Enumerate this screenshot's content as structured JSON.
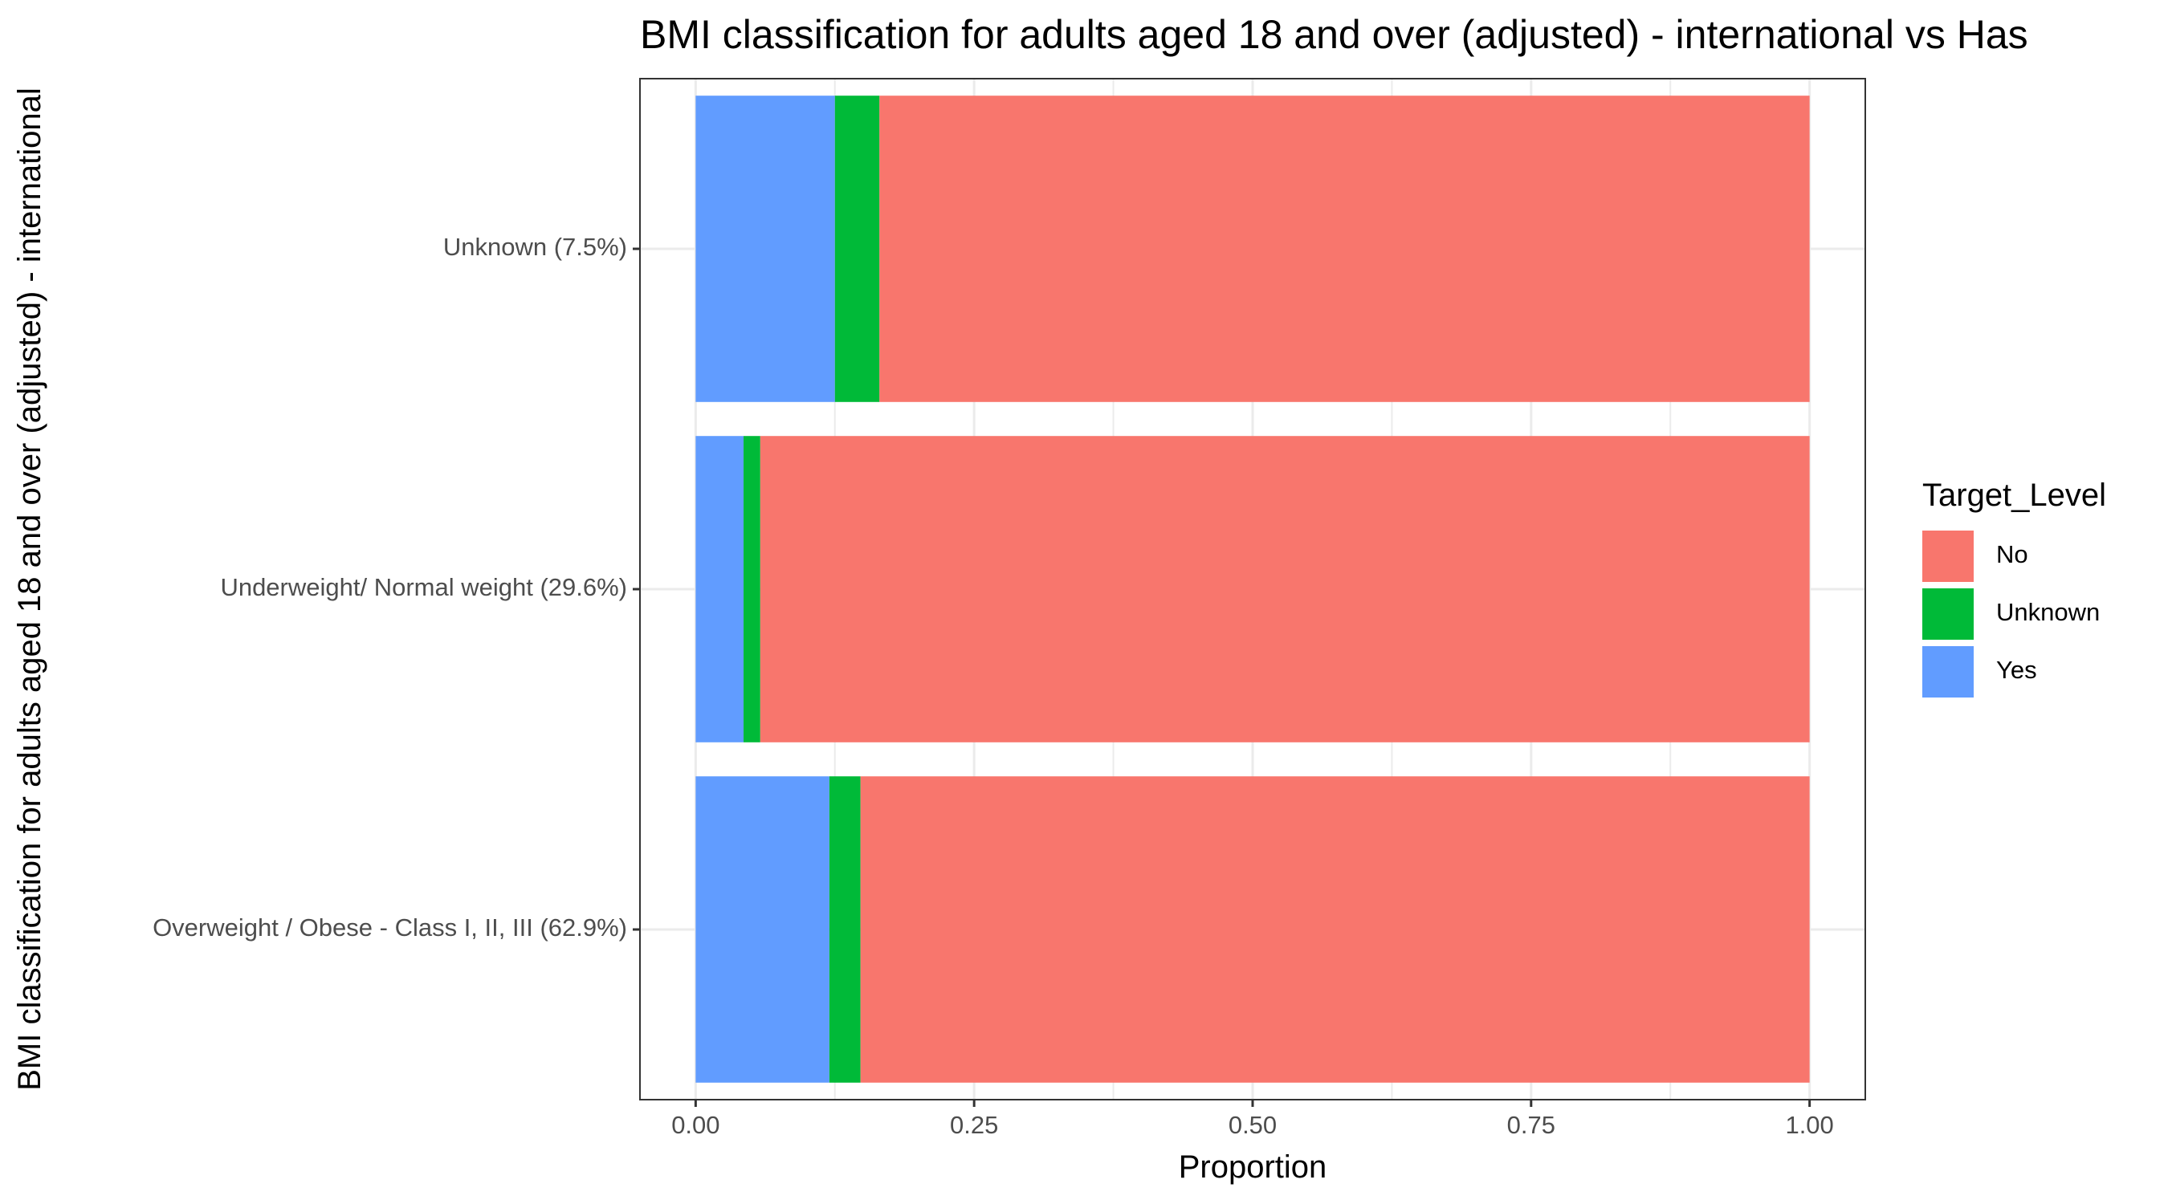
{
  "chart_data": {
    "type": "bar",
    "orientation": "horizontal",
    "stacked": true,
    "title": "BMI classification for adults aged 18 and over (adjusted) - international vs Has",
    "xlabel": "Proportion",
    "ylabel": "BMI classification for adults aged 18 and over (adjusted) - international",
    "xlim": [
      0,
      1
    ],
    "x_ticks": [
      "0.00",
      "0.25",
      "0.50",
      "0.75",
      "1.00"
    ],
    "grid": true,
    "categories": [
      "Unknown (7.5%)",
      "Underweight/ Normal weight (29.6%)",
      "Overweight / Obese - Class I, II, III (62.9%)"
    ],
    "series": [
      {
        "name": "Yes",
        "color": "#619CFF",
        "values": [
          0.125,
          0.043,
          0.12
        ]
      },
      {
        "name": "Unknown",
        "color": "#00BA38",
        "values": [
          0.04,
          0.015,
          0.028
        ]
      },
      {
        "name": "No",
        "color": "#F8766D",
        "values": [
          0.835,
          0.942,
          0.852
        ]
      }
    ],
    "legend": {
      "title": "Target_Level",
      "position": "right",
      "entries": [
        {
          "name": "No",
          "color": "#F8766D"
        },
        {
          "name": "Unknown",
          "color": "#00BA38"
        },
        {
          "name": "Yes",
          "color": "#619CFF"
        }
      ]
    }
  }
}
